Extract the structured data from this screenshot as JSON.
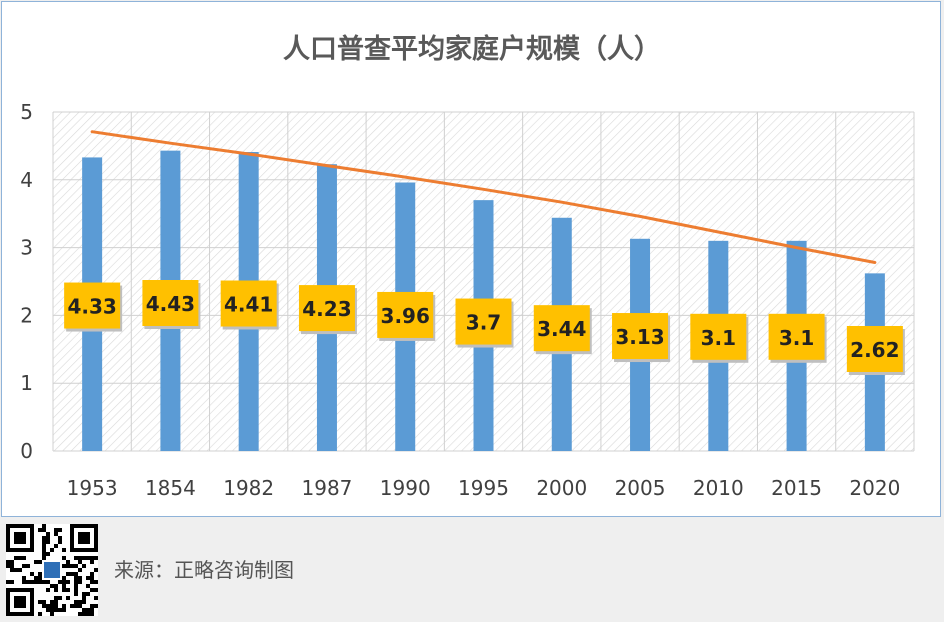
{
  "chart_data": {
    "type": "bar",
    "title": "人口普查平均家庭户规模（人）",
    "categories": [
      "1953",
      "1854",
      "1982",
      "1987",
      "1990",
      "1995",
      "2000",
      "2005",
      "2010",
      "2015",
      "2020"
    ],
    "series": [
      {
        "values": [
          4.33,
          4.43,
          4.41,
          4.23,
          3.96,
          3.7,
          3.44,
          3.13,
          3.1,
          3.1,
          2.62
        ],
        "labels": [
          "4.33",
          "4.43",
          "4.41",
          "4.23",
          "3.96",
          "3.7",
          "3.44",
          "3.13",
          "3.1",
          "3.1",
          "2.62"
        ]
      }
    ],
    "trendline": {
      "type": "line",
      "values": [
        4.71,
        4.54,
        4.38,
        4.21,
        4.04,
        3.86,
        3.67,
        3.46,
        3.23,
        3.0,
        2.78
      ]
    },
    "ylim": [
      0,
      5
    ],
    "yticks": [
      "0",
      "1",
      "2",
      "3",
      "4",
      "5"
    ],
    "grid": true,
    "xlabel": "",
    "ylabel": "",
    "colors": {
      "bar": "#5b9bd5",
      "trend": "#ed7d31",
      "label_bg": "#ffc000",
      "label_text": "#222222",
      "title": "#595959",
      "axis_text": "#404040"
    }
  },
  "footer": {
    "source": "来源：正略咨询制图",
    "qr_icon": "qr-code-icon"
  }
}
